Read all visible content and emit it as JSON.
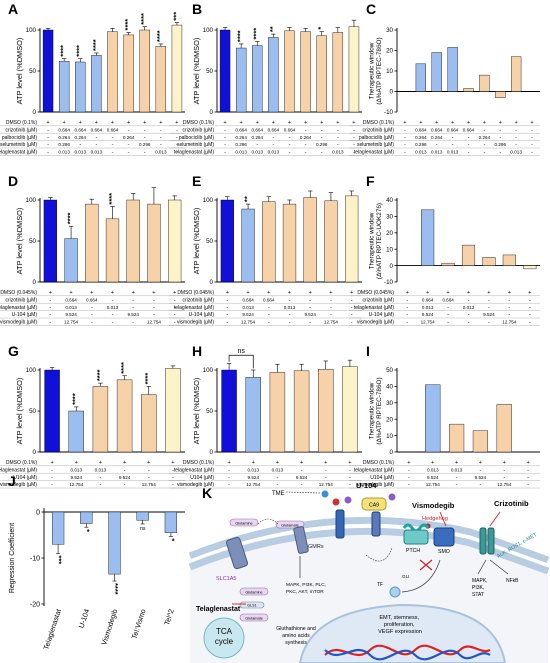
{
  "colors": {
    "dark_blue": "#1010d8",
    "light_blue": "#9cbdf0",
    "peach": "#f7d2a8",
    "cream": "#fcf3c8",
    "axis": "#000000"
  },
  "chart_data": [
    {
      "panel": "A",
      "type": "bar",
      "ylabel": "ATP level (%DMSO)",
      "ylim": [
        0,
        100
      ],
      "yticks": [
        0,
        50,
        100
      ],
      "values": [
        100,
        62,
        61,
        69,
        98,
        94,
        100,
        80,
        106
      ],
      "errors": [
        2,
        3,
        4,
        3,
        4,
        3,
        4,
        3,
        3
      ],
      "colors": [
        "dark_blue",
        "light_blue",
        "light_blue",
        "light_blue",
        "peach",
        "peach",
        "peach",
        "peach",
        "cream"
      ],
      "stars": [
        "",
        "****",
        "****",
        "****",
        "",
        "****",
        "****",
        "****",
        "***"
      ],
      "rows": [
        {
          "label": "DMSO (0.1%)",
          "cells": [
            "+",
            "+",
            "+",
            "+",
            "+",
            "+",
            "+",
            "+",
            "+"
          ]
        },
        {
          "label": "crizotinib (µM)",
          "cells": [
            "-",
            "0.664",
            "0.664",
            "0.664",
            "0.664",
            "-",
            "-",
            "-",
            "-"
          ]
        },
        {
          "label": "palbociclib (µM)",
          "cells": [
            "-",
            "0.264",
            "0.264",
            "-",
            "-",
            "0.264",
            "-",
            "-",
            "-"
          ]
        },
        {
          "label": "selumetinib (µM)",
          "cells": [
            "-",
            "0.296",
            "-",
            "-",
            "-",
            "-",
            "0.296",
            "-",
            "-"
          ]
        },
        {
          "label": "telaglenastat (µM)",
          "cells": [
            "-",
            "0.013",
            "0.013",
            "0.013",
            "-",
            "-",
            "-",
            "0.013",
            "-"
          ]
        }
      ]
    },
    {
      "panel": "B",
      "type": "bar",
      "ylabel": "ATP level (%DMSO)",
      "ylim": [
        0,
        100
      ],
      "yticks": [
        0,
        50,
        100
      ],
      "values": [
        100,
        78,
        81,
        91,
        99,
        98,
        93,
        97,
        104
      ],
      "errors": [
        3,
        5,
        5,
        4,
        4,
        4,
        5,
        6,
        8
      ],
      "colors": [
        "dark_blue",
        "light_blue",
        "light_blue",
        "light_blue",
        "peach",
        "peach",
        "peach",
        "peach",
        "cream"
      ],
      "stars": [
        "",
        "****",
        "****",
        "**",
        "",
        "",
        "*",
        "",
        ""
      ],
      "rows": [
        {
          "label": "DMSO (0.1%)",
          "cells": [
            "+",
            "+",
            "+",
            "+",
            "+",
            "+",
            "+",
            "+",
            "+"
          ]
        },
        {
          "label": "crizotinib (µM)",
          "cells": [
            "-",
            "0.664",
            "0.664",
            "0.664",
            "0.664",
            "-",
            "-",
            "-",
            "-"
          ]
        },
        {
          "label": "palbociclib (µM)",
          "cells": [
            "-",
            "0.264",
            "0.264",
            "-",
            "-",
            "0.264",
            "-",
            "-",
            "-"
          ]
        },
        {
          "label": "selumetinib (µM)",
          "cells": [
            "-",
            "0.296",
            "-",
            "-",
            "-",
            "-",
            "0.296",
            "-",
            "-"
          ]
        },
        {
          "label": "telaglenastat (µM)",
          "cells": [
            "-",
            "0.013",
            "0.013",
            "0.013",
            "-",
            "-",
            "-",
            "0.013",
            "-"
          ]
        }
      ]
    },
    {
      "panel": "C",
      "type": "bar",
      "ylabel": "Therapeutic window (Δ%ATP RPTEC-786O)",
      "ylim": [
        -10,
        30
      ],
      "yticks": [
        -10,
        0,
        10,
        20,
        30
      ],
      "values": [
        0,
        13.5,
        19,
        21.5,
        1.5,
        8,
        -3,
        17,
        0
      ],
      "colors": [
        "dark_blue",
        "light_blue",
        "light_blue",
        "light_blue",
        "peach",
        "peach",
        "peach",
        "peach",
        "cream"
      ],
      "rows": [
        {
          "label": "DMSO (0.1%)",
          "cells": [
            "+",
            "+",
            "+",
            "+",
            "+",
            "+",
            "+",
            "+",
            "+"
          ]
        },
        {
          "label": "crizotinib (µM)",
          "cells": [
            "-",
            "0.664",
            "0.664",
            "0.664",
            "0.664",
            "-",
            "-",
            "-",
            "-"
          ]
        },
        {
          "label": "palbociclib (µM)",
          "cells": [
            "-",
            "0.264",
            "0.264",
            "-",
            "-",
            "0.264",
            "-",
            "-",
            "-"
          ]
        },
        {
          "label": "selumetinib (µM)",
          "cells": [
            "-",
            "0.296",
            "-",
            "-",
            "-",
            "-",
            "0.296",
            "-",
            "-"
          ]
        },
        {
          "label": "telaglenastat (µM)",
          "cells": [
            "-",
            "0.013",
            "0.013",
            "0.013",
            "-",
            "-",
            "-",
            "0.013",
            "-"
          ]
        }
      ]
    },
    {
      "panel": "D",
      "type": "bar",
      "ylabel": "ATP level (%DMSO)",
      "ylim": [
        0,
        100
      ],
      "yticks": [
        0,
        50,
        100
      ],
      "values": [
        100,
        53,
        95,
        77,
        100,
        95,
        100
      ],
      "errors": [
        3,
        15,
        6,
        15,
        8,
        20,
        5
      ],
      "colors": [
        "dark_blue",
        "light_blue",
        "peach",
        "peach",
        "peach",
        "peach",
        "cream"
      ],
      "stars": [
        "",
        "****",
        "",
        "****",
        "",
        "",
        ""
      ],
      "rows": [
        {
          "label": "DMSO (0.045%)",
          "cells": [
            "+",
            "+",
            "+",
            "+",
            "+",
            "+",
            "+"
          ]
        },
        {
          "label": "crizotinib (µM)",
          "cells": [
            "-",
            "0.664",
            "0.664",
            "-",
            "-",
            "-",
            "-"
          ]
        },
        {
          "label": "telaglenastat (µM)",
          "cells": [
            "-",
            "0.013",
            "-",
            "0.013",
            "-",
            "-",
            "-"
          ]
        },
        {
          "label": "U-104 (µM)",
          "cells": [
            "-",
            "9.524",
            "-",
            "-",
            "9.524",
            "-",
            "-"
          ]
        },
        {
          "label": "vismodegib (µM)",
          "cells": [
            "-",
            "12.754",
            "-",
            "-",
            "-",
            "12.754",
            "-"
          ]
        }
      ]
    },
    {
      "panel": "E",
      "type": "bar",
      "ylabel": "ATP level (%DMSO)",
      "ylim": [
        0,
        100
      ],
      "yticks": [
        0,
        50,
        100
      ],
      "values": [
        100,
        89,
        98,
        95,
        103,
        99,
        105
      ],
      "errors": [
        4,
        6,
        6,
        5,
        8,
        10,
        6
      ],
      "colors": [
        "dark_blue",
        "light_blue",
        "peach",
        "peach",
        "peach",
        "peach",
        "cream"
      ],
      "stars": [
        "",
        "**",
        "",
        "",
        "",
        "",
        ""
      ],
      "rows": [
        {
          "label": "DMSO (0.045%)",
          "cells": [
            "+",
            "+",
            "+",
            "+",
            "+",
            "+",
            "+"
          ]
        },
        {
          "label": "crizotinib (µM)",
          "cells": [
            "-",
            "0.664",
            "0.664",
            "-",
            "-",
            "-",
            "-"
          ]
        },
        {
          "label": "telaglenastat (µM)",
          "cells": [
            "-",
            "0.013",
            "-",
            "0.013",
            "-",
            "-",
            "-"
          ]
        },
        {
          "label": "U-104 (µM)",
          "cells": [
            "-",
            "9.524",
            "-",
            "-",
            "9.524",
            "-",
            "-"
          ]
        },
        {
          "label": "vismodegib (µM)",
          "cells": [
            "-",
            "12.754",
            "-",
            "-",
            "-",
            "12.754",
            "-"
          ]
        }
      ]
    },
    {
      "panel": "F",
      "type": "bar",
      "ylabel": "Therapeutic window (Δ%ATP RPTEC-UOK276)",
      "ylim": [
        -10,
        40
      ],
      "yticks": [
        -10,
        0,
        10,
        20,
        30,
        40
      ],
      "values": [
        0,
        34,
        1.5,
        12.5,
        5,
        6.5,
        -2
      ],
      "colors": [
        "dark_blue",
        "light_blue",
        "peach",
        "peach",
        "peach",
        "peach",
        "cream"
      ],
      "rows": [
        {
          "label": "DMSO (0.045%)",
          "cells": [
            "+",
            "+",
            "+",
            "+",
            "+",
            "+",
            "+"
          ]
        },
        {
          "label": "crizotinib (µM)",
          "cells": [
            "-",
            "0.664",
            "0.664",
            "-",
            "-",
            "-",
            "-"
          ]
        },
        {
          "label": "telaglenastat (µM)",
          "cells": [
            "-",
            "0.013",
            "-",
            "0.013",
            "-",
            "-",
            "-"
          ]
        },
        {
          "label": "U-104 (µM)",
          "cells": [
            "-",
            "9.524",
            "-",
            "-",
            "9.524",
            "-",
            "-"
          ]
        },
        {
          "label": "vismodegib (µM)",
          "cells": [
            "-",
            "12.754",
            "-",
            "-",
            "-",
            "12.754",
            "-"
          ]
        }
      ]
    },
    {
      "panel": "G",
      "type": "bar",
      "ylabel": "ATP level (%DMSO)",
      "ylim": [
        0,
        100
      ],
      "yticks": [
        0,
        50,
        100
      ],
      "values": [
        100,
        50,
        80,
        88,
        70,
        102
      ],
      "errors": [
        3,
        5,
        4,
        5,
        10,
        3
      ],
      "colors": [
        "dark_blue",
        "light_blue",
        "peach",
        "peach",
        "peach",
        "cream"
      ],
      "stars": [
        "",
        "****",
        "****",
        "****",
        "****",
        ""
      ],
      "rows": [
        {
          "label": "DMSO (0.1%)",
          "cells": [
            "+",
            "+",
            "+",
            "+",
            "+",
            "+"
          ]
        },
        {
          "label": "telaglenastat (µM)",
          "cells": [
            "-",
            "0.013",
            "0.013",
            "-",
            "-",
            "-"
          ]
        },
        {
          "label": "U104 (µM)",
          "cells": [
            "-",
            "9.524",
            "-",
            "9.524",
            "-",
            "-"
          ]
        },
        {
          "label": "vismodegib (µM)",
          "cells": [
            "-",
            "12.754",
            "-",
            "-",
            "12.754",
            "-"
          ]
        }
      ]
    },
    {
      "panel": "H",
      "type": "bar",
      "ylabel": "ATP level (%DMSO)",
      "ylim": [
        0,
        100
      ],
      "yticks": [
        0,
        50,
        100
      ],
      "values": [
        100,
        91,
        97,
        99,
        101,
        104
      ],
      "errors": [
        8,
        9,
        10,
        8,
        10,
        8
      ],
      "colors": [
        "dark_blue",
        "light_blue",
        "peach",
        "peach",
        "peach",
        "cream"
      ],
      "stars": [
        "",
        "",
        "",
        "",
        "",
        ""
      ],
      "bracket_label": "ns",
      "rows": [
        {
          "label": "DMSO (0.1%)",
          "cells": [
            "+",
            "+",
            "+",
            "+",
            "+",
            "+"
          ]
        },
        {
          "label": "telaglenastat (µM)",
          "cells": [
            "-",
            "0.013",
            "0.013",
            "-",
            "-",
            "-"
          ]
        },
        {
          "label": "U104 (µM)",
          "cells": [
            "-",
            "9.524",
            "-",
            "9.524",
            "-",
            "-"
          ]
        },
        {
          "label": "vismodegib (µM)",
          "cells": [
            "-",
            "12.754",
            "-",
            "-",
            "12.754",
            "-"
          ]
        }
      ]
    },
    {
      "panel": "I",
      "type": "bar",
      "ylabel": "Therapeutic window (Δ%ATP RPTEC-786O)",
      "ylim": [
        0,
        50
      ],
      "yticks": [
        0,
        10,
        20,
        30,
        40,
        50
      ],
      "values": [
        0,
        41,
        17,
        13,
        29,
        0
      ],
      "colors": [
        "dark_blue",
        "light_blue",
        "peach",
        "peach",
        "peach",
        "cream"
      ],
      "rows": [
        {
          "label": "DMSO (0.1%)",
          "cells": [
            "+",
            "+",
            "+",
            "+",
            "+",
            "+"
          ]
        },
        {
          "label": "telaglenastat (µM)",
          "cells": [
            "-",
            "0.013",
            "0.013",
            "-",
            "-",
            "-"
          ]
        },
        {
          "label": "U104 (µM)",
          "cells": [
            "-",
            "9.524",
            "-",
            "9.524",
            "-",
            "-"
          ]
        },
        {
          "label": "vismodegib (µM)",
          "cells": [
            "-",
            "12.754",
            "-",
            "-",
            "12.754",
            "-"
          ]
        }
      ]
    },
    {
      "panel": "J",
      "type": "bar",
      "ylabel": "Regression Coefficient",
      "ylim": [
        -20,
        0
      ],
      "yticks": [
        -20,
        -10,
        0
      ],
      "categories": [
        "Telaglenastat",
        "U-104",
        "Vismodegib",
        "Tel:Vismo",
        "Tel^2"
      ],
      "values": [
        -7,
        -2.5,
        -13.5,
        -1.8,
        -4.5
      ],
      "errors": [
        2,
        0.8,
        1.5,
        0.8,
        0.8
      ],
      "stars": [
        "***",
        "*",
        "****",
        "ns",
        "*"
      ]
    }
  ],
  "diagram_k": {
    "panel": "K",
    "labels": {
      "tme": "TME",
      "u104": "U-104",
      "ca9": "CA9",
      "vismodegib": "Vismodegib",
      "hedgehog": "Hedgehog",
      "crizotinib": "Crizotinib",
      "ptch": "PTCH",
      "smo": "SMO",
      "alk": "ALK, ROS1, c-MET",
      "gmrs": "GMRs",
      "slc1a5": "SLC1A5",
      "gls1": "GLS1",
      "glutamine_out": "Glutamine",
      "glutamate_out": "Glutamate",
      "glutamine_in": "Glutamine",
      "glutamate_in": "Glutamate",
      "telaglenastat": "Telaglenastat",
      "tca": "TCA cycle",
      "synthesis": "Gluthathione and amino acids synthesis",
      "mapk_gmr": "MAPK, PI3K, PLC, PKC, AKT, mTOR",
      "gli": "GLI",
      "tf": "TF",
      "mapk_alk": "MAPK, PI3K, STAT",
      "nfkb": "NFkB",
      "nucleus": "EMT, stemness, proliferation, VEGF expression"
    }
  }
}
